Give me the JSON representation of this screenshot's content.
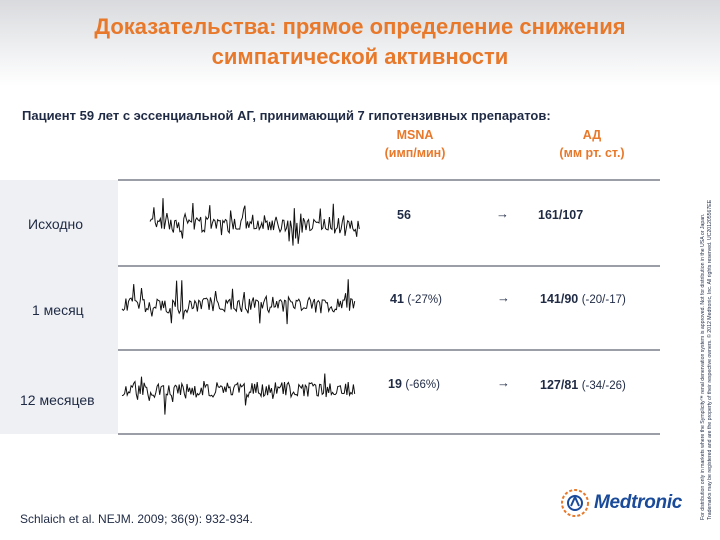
{
  "slide": {
    "title_line1": "Доказательства: прямое определение снижения",
    "title_line2": "симпатической активности",
    "subtitle": "Пациент 59 лет с эссенциальной АГ, принимающий 7 гипотензивных препаратов:",
    "columns": {
      "msna_line1": "MSNA",
      "msna_line2": "(имп/мин)",
      "ad_line1": "АД",
      "ad_line2": "(мм рт. ст.)"
    },
    "rows": [
      {
        "label": "Исходно",
        "msna": "56",
        "msna_change": "",
        "arrow": "→",
        "ad": "161/107",
        "ad_change": ""
      },
      {
        "label": "1 месяц",
        "msna": "41",
        "msna_change": "(-27%)",
        "arrow": "→",
        "ad": "141/90",
        "ad_change": "(-20/-17)"
      },
      {
        "label": "12 месяцев",
        "msna": "19",
        "msna_change": "(-66%)",
        "arrow": "→",
        "ad": "127/81",
        "ad_change": "(-34/-26)"
      }
    ],
    "citation": "Schlaich et al. NEJM. 2009; 36(9): 932-934.",
    "side_note_line1": "For distribution only in markets where the Symplicity™ renal denervation system is approved. Not for distribution in the USA or Japan.",
    "side_note_line2": "Trademarks may be registered and are the property of their respective owners. © 2012 Medtronic, Inc. All rights reserved. UC201205567EE",
    "brand": "Medtronic"
  },
  "colors": {
    "accent_orange": "#e8782a",
    "text_navy": "#1f2a44",
    "brand_blue": "#1a4a9a"
  }
}
